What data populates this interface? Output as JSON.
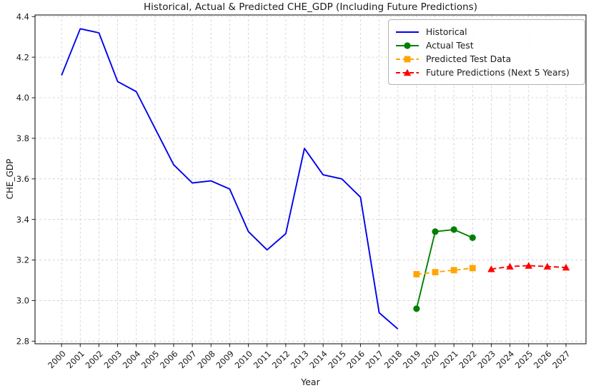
{
  "chart_data": {
    "type": "line",
    "title": "Historical, Actual & Predicted CHE_GDP (Including Future Predictions)",
    "xlabel": "Year",
    "ylabel": "CHE_GDP",
    "xlim": [
      1998.58,
      2028.07
    ],
    "ylim": [
      2.787,
      4.408
    ],
    "x_ticks": [
      2000,
      2001,
      2002,
      2003,
      2004,
      2005,
      2006,
      2007,
      2008,
      2009,
      2010,
      2011,
      2012,
      2013,
      2014,
      2015,
      2016,
      2017,
      2018,
      2019,
      2020,
      2021,
      2022,
      2023,
      2024,
      2025,
      2026,
      2027
    ],
    "y_ticks": [
      2.8,
      3.0,
      3.2,
      3.4,
      3.6,
      3.8,
      4.0,
      4.2,
      4.4
    ],
    "grid": true,
    "grid_color": "#cccccc",
    "legend_position": "upper right",
    "series": [
      {
        "name": "Historical",
        "color": "#0000ee",
        "line_style": "solid",
        "marker": "none",
        "x": [
          2000,
          2001,
          2002,
          2003,
          2004,
          2005,
          2006,
          2007,
          2008,
          2009,
          2010,
          2011,
          2012,
          2013,
          2014,
          2015,
          2016,
          2017,
          2018
        ],
        "values": [
          4.11,
          4.34,
          4.32,
          4.08,
          4.03,
          3.85,
          3.67,
          3.58,
          3.59,
          3.55,
          3.34,
          3.25,
          3.33,
          3.75,
          3.62,
          3.6,
          3.51,
          2.94,
          2.86
        ]
      },
      {
        "name": "Actual Test",
        "color": "#008000",
        "line_style": "solid",
        "marker": "circle",
        "x": [
          2019,
          2020,
          2021,
          2022
        ],
        "values": [
          2.96,
          3.34,
          3.35,
          3.31
        ]
      },
      {
        "name": "Predicted Test Data",
        "color": "#ffa500",
        "line_style": "dashed",
        "marker": "square",
        "x": [
          2019,
          2020,
          2021,
          2022
        ],
        "values": [
          3.13,
          3.14,
          3.15,
          3.16
        ]
      },
      {
        "name": "Future Predictions (Next 5 Years)",
        "color": "#ff0000",
        "line_style": "dashed",
        "marker": "triangle",
        "x": [
          2023,
          2024,
          2025,
          2026,
          2027
        ],
        "values": [
          3.155,
          3.168,
          3.172,
          3.168,
          3.163
        ]
      }
    ]
  }
}
